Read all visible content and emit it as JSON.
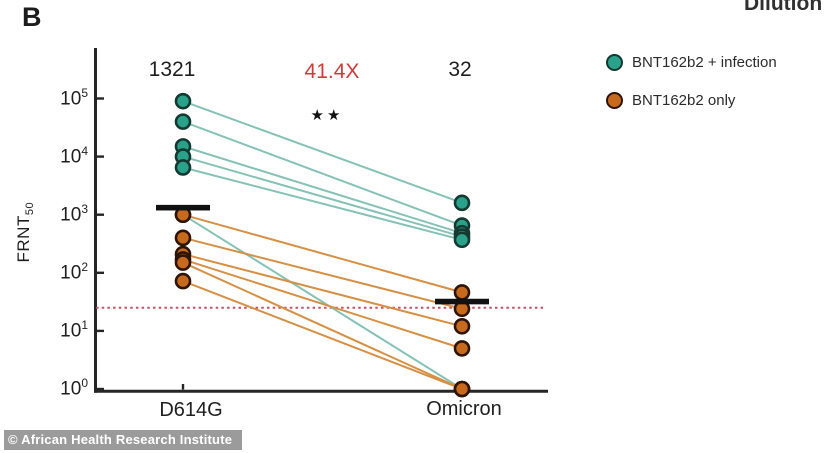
{
  "panel_label": "B",
  "clipped_top_text": "Dilution",
  "watermark": "© African Health Research Institute",
  "annotations": {
    "d614g_gmt": "1321",
    "fold_change": "41.4X",
    "significance": "★★",
    "omicron_gmt": "32"
  },
  "legend": {
    "items": [
      {
        "label": "BNT162b2 + infection",
        "dot_color": "#2aa189",
        "dot_stroke": "#143931"
      },
      {
        "label": "BNT162b2 only",
        "dot_color": "#c76a1e",
        "dot_stroke": "#2e1404"
      }
    ]
  },
  "colors": {
    "fold_change_red": "#cb3d3c",
    "threshold_line": "#c64f63",
    "axis": "#262626",
    "gmt_bar": "#111111"
  },
  "chart_data": {
    "type": "scatter",
    "subtype": "paired-dot-plot",
    "title": "",
    "ylabel": "FRNT",
    "ylabel_subscript": "50",
    "xlabel": "",
    "categories": [
      "D614G",
      "Omicron"
    ],
    "y_scale": "log10",
    "y_tick_exponents": [
      0,
      1,
      2,
      3,
      4,
      5
    ],
    "ylim": [
      1,
      100000
    ],
    "grid": false,
    "legend_position": "top-right",
    "threshold_value": 25,
    "geometric_means": [
      {
        "category": "D614G",
        "value": 1321
      },
      {
        "category": "Omicron",
        "value": 32
      }
    ],
    "series": [
      {
        "name": "BNT162b2 + infection",
        "dot_color": "#2aa189",
        "dot_stroke": "#143931",
        "line_color": "#85c2b5",
        "pairs": [
          [
            90000,
            1600
          ],
          [
            40000,
            650
          ],
          [
            15000,
            480
          ],
          [
            10000,
            420
          ],
          [
            6500,
            370
          ],
          [
            1000,
            1
          ]
        ]
      },
      {
        "name": "BNT162b2 only",
        "dot_color": "#c76a1e",
        "dot_stroke": "#2e1404",
        "line_color": "#d68f43",
        "pairs": [
          [
            1000,
            46
          ],
          [
            400,
            24
          ],
          [
            210,
            12
          ],
          [
            170,
            5
          ],
          [
            150,
            1
          ],
          [
            72,
            1
          ]
        ]
      }
    ]
  }
}
